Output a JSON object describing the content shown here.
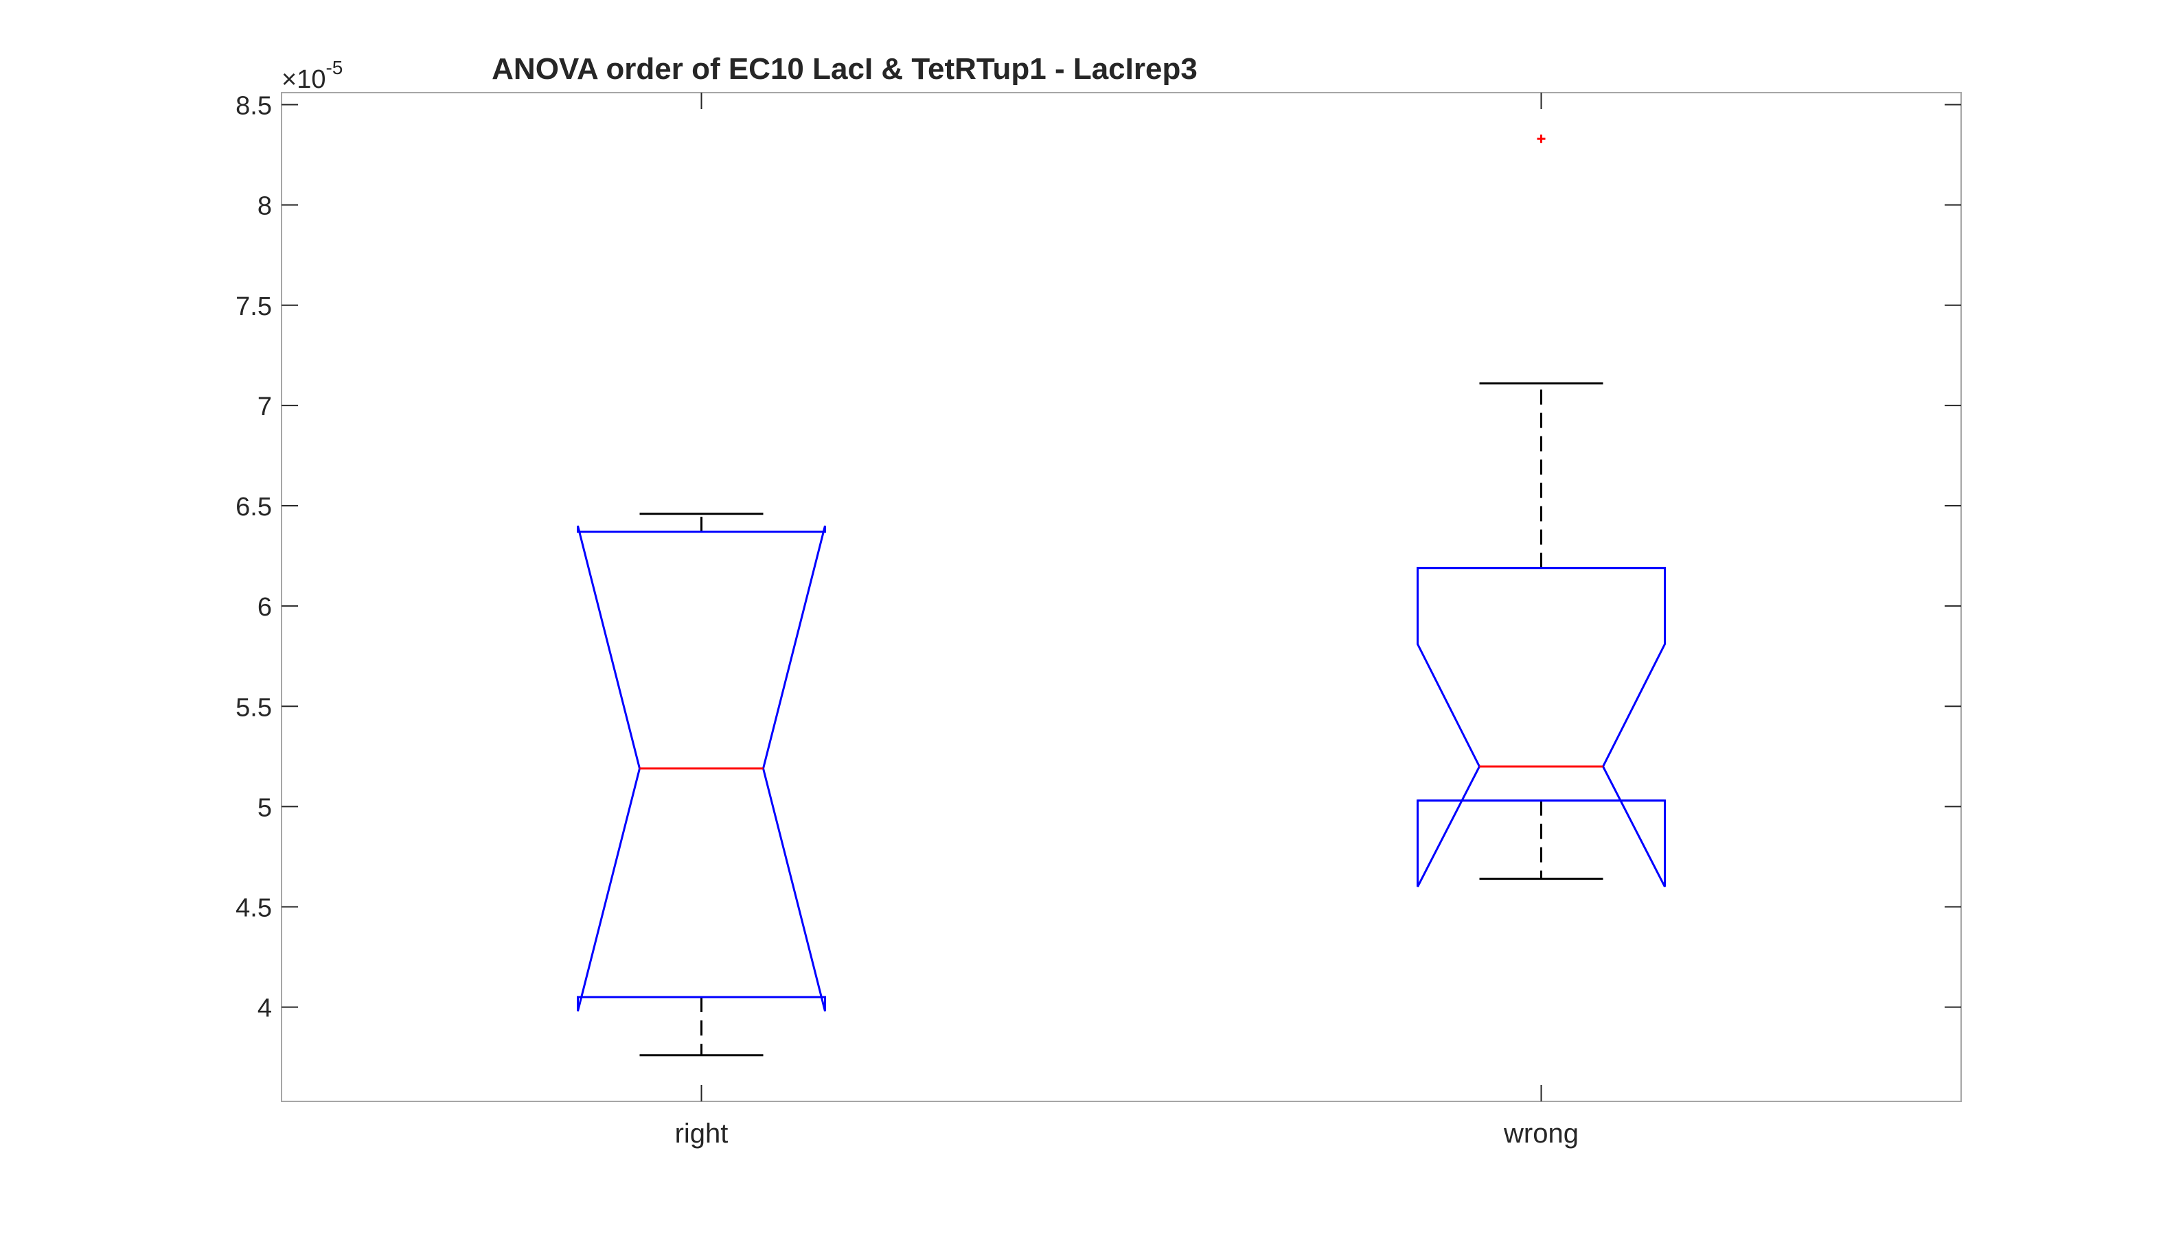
{
  "chart_data": {
    "type": "box",
    "title": "ANOVA order of EC10 LacI & TetRTup1 - LacIrep3",
    "xlabel": "",
    "ylabel": "",
    "y_exponent_label": "×10",
    "y_exponent_power": "-5",
    "ylim": [
      3.53,
      8.56
    ],
    "yticks": [
      4,
      4.5,
      5,
      5.5,
      6,
      6.5,
      7,
      7.5,
      8,
      8.5
    ],
    "ytick_labels": [
      "4",
      "4.5",
      "5",
      "5.5",
      "6",
      "6.5",
      "7",
      "7.5",
      "8",
      "8.5"
    ],
    "categories": [
      "right",
      "wrong"
    ],
    "notched": true,
    "grid": false,
    "legend": false,
    "colors": {
      "box": "#0000ff",
      "median": "#ff0000",
      "whisker": "#000000",
      "outlier": "#ff0000",
      "axis": "#262626",
      "frame": "#a6a6a6"
    },
    "boxes": [
      {
        "category": "right",
        "whisker_low": 3.76,
        "q1": 4.05,
        "median": 5.19,
        "q3": 6.37,
        "whisker_high": 6.46,
        "notch_low": 3.98,
        "notch_high": 6.4,
        "outliers": []
      },
      {
        "category": "wrong",
        "whisker_low": 4.64,
        "q1": 5.03,
        "median": 5.2,
        "q3": 6.19,
        "whisker_high": 7.11,
        "notch_low": 4.6,
        "notch_high": 5.81,
        "outliers": [
          8.33
        ]
      }
    ]
  }
}
